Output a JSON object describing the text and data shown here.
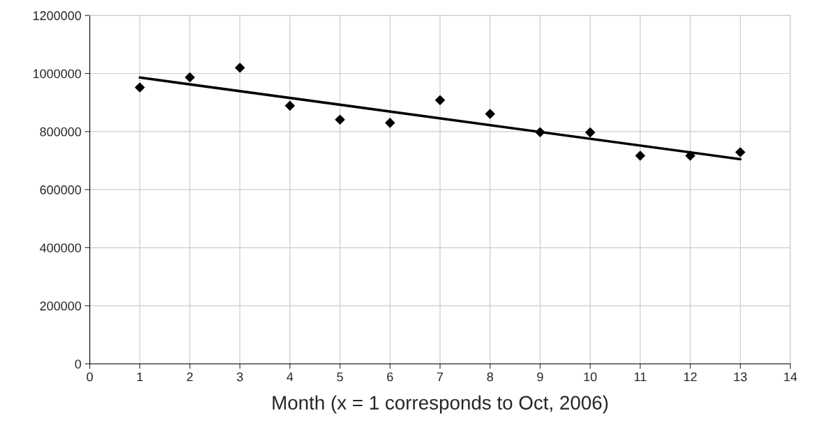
{
  "chart_data": {
    "type": "scatter",
    "xlabel": "Month (x = 1 corresponds to Oct, 2006)",
    "x": [
      1,
      2,
      3,
      4,
      5,
      6,
      7,
      8,
      9,
      10,
      11,
      12,
      13
    ],
    "series": [
      {
        "color": "#000000",
        "marker": "diamond",
        "values": [
          952000,
          987000,
          1020000,
          889000,
          841000,
          830000,
          908000,
          861000,
          798000,
          797000,
          717000,
          717000,
          729000
        ]
      },
      {
        "type": "line",
        "color": "#000000",
        "x": [
          1,
          13
        ],
        "values": [
          986000,
          705000
        ],
        "marker": "none",
        "line_style": "solid"
      }
    ],
    "xlim": [
      0,
      14
    ],
    "xticks": [
      0,
      1,
      2,
      3,
      4,
      5,
      6,
      7,
      8,
      9,
      10,
      11,
      12,
      13,
      14
    ],
    "ylim": [
      0,
      1200000
    ],
    "yticks": [
      0,
      200000,
      400000,
      600000,
      800000,
      1000000,
      1200000
    ],
    "grid": true,
    "legend": false
  }
}
